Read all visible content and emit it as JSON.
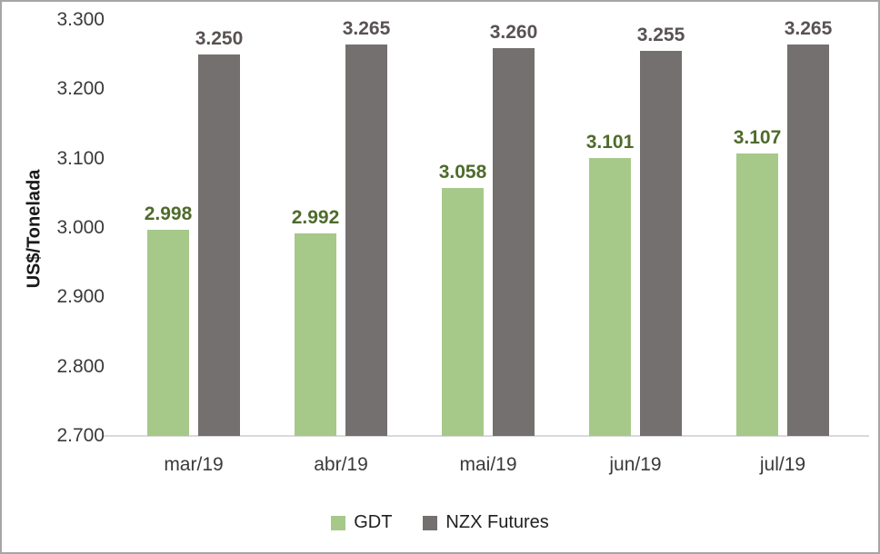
{
  "chart_data": {
    "type": "bar",
    "title": "",
    "ylabel": "US$/Tonelada",
    "xlabel": "",
    "categories": [
      "mar/19",
      "abr/19",
      "mai/19",
      "jun/19",
      "jul/19"
    ],
    "series": [
      {
        "name": "GDT",
        "color": "#a6c98a",
        "label_color": "#4f6b2c",
        "values": [
          2998,
          2992,
          3058,
          3101,
          3107
        ],
        "labels": [
          "2.998",
          "2.992",
          "3.058",
          "3.101",
          "3.107"
        ]
      },
      {
        "name": "NZX Futures",
        "color": "#757070",
        "label_color": "#595252",
        "values": [
          3250,
          3265,
          3260,
          3255,
          3265
        ],
        "labels": [
          "3.250",
          "3.265",
          "3.260",
          "3.255",
          "3.265"
        ]
      }
    ],
    "ylim": [
      2700,
      3300
    ],
    "yticks": {
      "values": [
        2700,
        2800,
        2900,
        3000,
        3100,
        3200,
        3300
      ],
      "labels": [
        "2.700",
        "2.800",
        "2.900",
        "3.000",
        "3.100",
        "3.200",
        "3.300"
      ]
    },
    "grid": false,
    "legend_position": "bottom"
  },
  "colors": {
    "background": "#ffffff",
    "frame_border": "#a6a6a6",
    "axis_line": "#d9d9d9",
    "tick_text": "#3a3a3a",
    "axis_title_text": "#1a1a1a",
    "legend_text": "#1f1f1f"
  }
}
